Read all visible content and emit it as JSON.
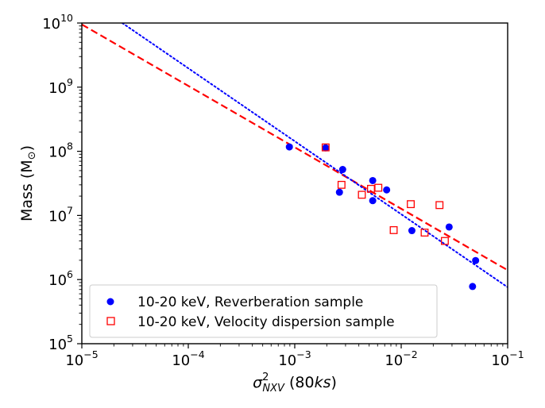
{
  "chart_data": {
    "type": "scatter",
    "xscale": "log",
    "yscale": "log",
    "xlim": [
      1e-05,
      0.1
    ],
    "ylim": [
      100000,
      10000000000
    ],
    "xlabel": {
      "symbol": "σ",
      "sup": "2",
      "sub": "NXV",
      "rest_pre": " (80",
      "rest_it": "ks",
      "rest_post": ")"
    },
    "ylabel": {
      "text_pre": "Mass (M",
      "sub": "⊙",
      "text_post": ")"
    },
    "x_ticks": [
      {
        "value": 1e-05,
        "base": "10",
        "exp": "−5"
      },
      {
        "value": 0.0001,
        "base": "10",
        "exp": "−4"
      },
      {
        "value": 0.001,
        "base": "10",
        "exp": "−3"
      },
      {
        "value": 0.01,
        "base": "10",
        "exp": "−2"
      },
      {
        "value": 0.1,
        "base": "10",
        "exp": "−1"
      }
    ],
    "y_ticks": [
      {
        "value": 100000,
        "base": "10",
        "exp": "5"
      },
      {
        "value": 1000000,
        "base": "10",
        "exp": "6"
      },
      {
        "value": 10000000,
        "base": "10",
        "exp": "7"
      },
      {
        "value": 100000000,
        "base": "10",
        "exp": "8"
      },
      {
        "value": 1000000000,
        "base": "10",
        "exp": "9"
      },
      {
        "value": 10000000000,
        "base": "10",
        "exp": "10"
      }
    ],
    "grid": false,
    "legend_position": "bottom-left",
    "series": [
      {
        "name": "10-20 keV, Reverberation sample",
        "marker": "filled-circle",
        "color": "#0000ff",
        "points": [
          [
            0.00089,
            117000000
          ],
          [
            0.00195,
            113000000
          ],
          [
            0.00282,
            52000000
          ],
          [
            0.00263,
            23000000
          ],
          [
            0.0054,
            35000000
          ],
          [
            0.0054,
            17000000
          ],
          [
            0.0073,
            25000000
          ],
          [
            0.0126,
            5800000
          ],
          [
            0.0282,
            6600000
          ],
          [
            0.05,
            1980000
          ],
          [
            0.0468,
            780000
          ]
        ]
      },
      {
        "name": "10-20 keV, Velocity dispersion sample",
        "marker": "open-square",
        "color": "#ff0000",
        "points": [
          [
            0.00195,
            115000000
          ],
          [
            0.00275,
            30000000
          ],
          [
            0.00427,
            21000000
          ],
          [
            0.0052,
            26000000
          ],
          [
            0.0061,
            27000000
          ],
          [
            0.0085,
            5900000
          ],
          [
            0.0123,
            15000000
          ],
          [
            0.0166,
            5400000
          ],
          [
            0.0229,
            14500000
          ],
          [
            0.0257,
            4000000
          ]
        ]
      }
    ],
    "fit_lines": [
      {
        "style": "dashed",
        "color": "#ff0000",
        "from": [
          1e-05,
          9500000000
        ],
        "to": [
          0.1,
          1400000
        ]
      },
      {
        "style": "dotted",
        "color": "#0000ff",
        "from": [
          2.4e-05,
          10000000000
        ],
        "to": [
          0.1,
          760000
        ]
      }
    ]
  }
}
